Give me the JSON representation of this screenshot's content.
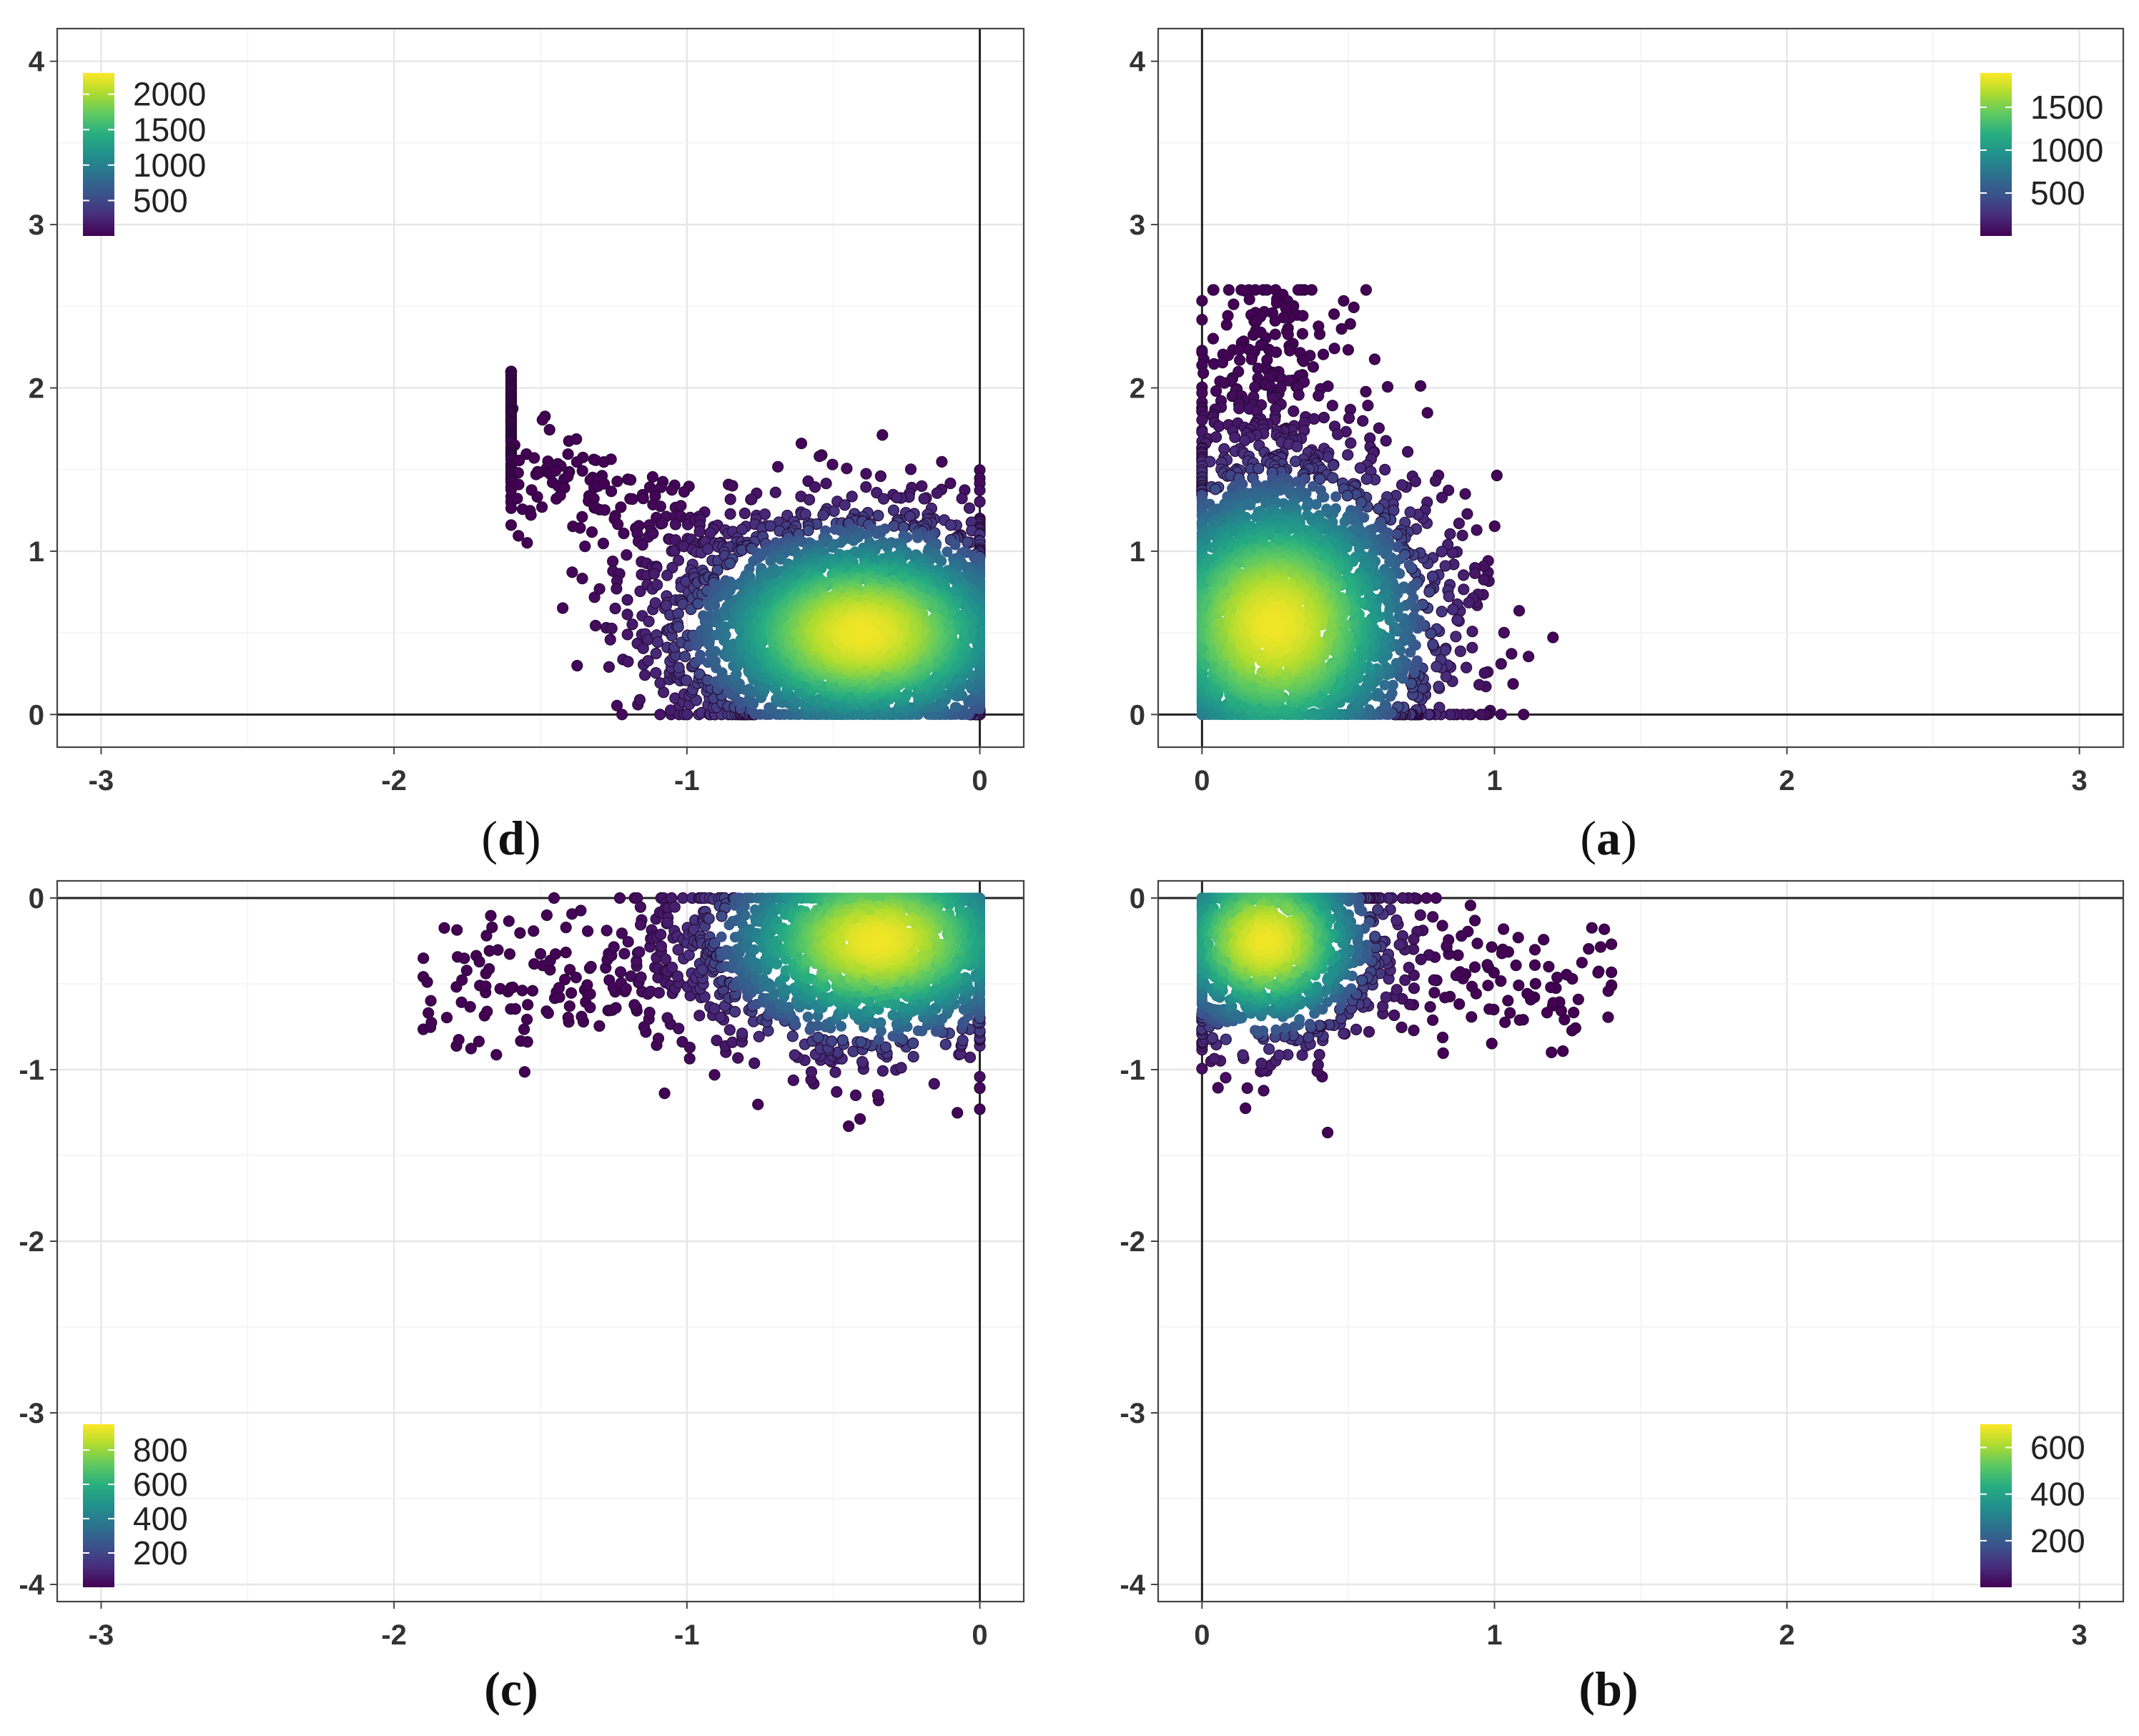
{
  "chart_data": [
    {
      "id": "d",
      "type": "scatter",
      "caption": {
        "open": "(",
        "letter": "d",
        "close": ")"
      },
      "xlim": [
        -3.15,
        0.15
      ],
      "ylim": [
        -0.2,
        4.2
      ],
      "x_ticks": [
        "-3",
        "-2",
        "-1",
        "0"
      ],
      "x_tick_values": [
        -3,
        -2,
        -1,
        0
      ],
      "y_ticks": [
        "0",
        "1",
        "2",
        "3",
        "4"
      ],
      "y_tick_values": [
        0,
        1,
        2,
        3,
        4
      ],
      "legend": {
        "position": "top-left",
        "labels": [
          "2000",
          "1500",
          "1000",
          "500"
        ],
        "values": [
          2000,
          1500,
          1000,
          500
        ],
        "range": [
          0,
          2300
        ]
      },
      "density": {
        "center": [
          -0.4,
          0.5
        ],
        "spread": [
          0.32,
          0.36
        ],
        "x_range": [
          -1.6,
          0.0
        ],
        "y_range": [
          0.0,
          2.1
        ],
        "count": 3600,
        "seed": 11,
        "tail_toward": [
          -2.3,
          2.2
        ]
      },
      "grid": true
    },
    {
      "id": "a",
      "type": "scatter",
      "caption": {
        "open": "(",
        "letter": "a",
        "close": ")"
      },
      "xlim": [
        -0.15,
        3.15
      ],
      "ylim": [
        -0.2,
        4.2
      ],
      "x_ticks": [
        "0",
        "1",
        "2",
        "3"
      ],
      "x_tick_values": [
        0,
        1,
        2,
        3
      ],
      "y_ticks": [
        "0",
        "1",
        "2",
        "3",
        "4"
      ],
      "y_tick_values": [
        0,
        1,
        2,
        3,
        4
      ],
      "legend": {
        "position": "top-right",
        "labels": [
          "1500",
          "1000",
          "500"
        ],
        "values": [
          1500,
          1000,
          500
        ],
        "range": [
          0,
          1900
        ]
      },
      "density": {
        "center": [
          0.25,
          0.55
        ],
        "spread": [
          0.28,
          0.5
        ],
        "x_range": [
          0.0,
          1.2
        ],
        "y_range": [
          0.0,
          2.6
        ],
        "count": 3400,
        "seed": 23,
        "tail_toward": [
          0.2,
          2.6
        ]
      },
      "grid": true
    },
    {
      "id": "c",
      "type": "scatter",
      "caption": {
        "open": "(",
        "letter": "c",
        "close": ")"
      },
      "xlim": [
        -3.15,
        0.15
      ],
      "ylim": [
        -4.1,
        0.1
      ],
      "x_ticks": [
        "-3",
        "-2",
        "-1",
        "0"
      ],
      "x_tick_values": [
        -3,
        -2,
        -1,
        0
      ],
      "y_ticks": [
        "0",
        "-1",
        "-2",
        "-3",
        "-4"
      ],
      "y_tick_values": [
        0,
        -1,
        -2,
        -3,
        -4
      ],
      "legend": {
        "position": "bottom-left",
        "labels": [
          "800",
          "600",
          "400",
          "200"
        ],
        "values": [
          800,
          600,
          400,
          200
        ],
        "range": [
          0,
          950
        ]
      },
      "density": {
        "center": [
          -0.35,
          -0.25
        ],
        "spread": [
          0.3,
          0.32
        ],
        "x_range": [
          -1.9,
          0.0
        ],
        "y_range": [
          -1.9,
          0.0
        ],
        "count": 2300,
        "seed": 37,
        "tail_toward": [
          -1.8,
          -0.6
        ]
      },
      "grid": true
    },
    {
      "id": "b",
      "type": "scatter",
      "caption": {
        "open": "(",
        "letter": "b",
        "close": ")"
      },
      "xlim": [
        -0.15,
        3.15
      ],
      "ylim": [
        -4.1,
        0.1
      ],
      "x_ticks": [
        "0",
        "1",
        "2",
        "3"
      ],
      "x_tick_values": [
        0,
        1,
        2,
        3
      ],
      "y_ticks": [
        "0",
        "-1",
        "-2",
        "-3",
        "-4"
      ],
      "y_tick_values": [
        0,
        -1,
        -2,
        -3,
        -4
      ],
      "legend": {
        "position": "bottom-right",
        "labels": [
          "600",
          "400",
          "200"
        ],
        "values": [
          600,
          400,
          200
        ],
        "range": [
          0,
          700
        ]
      },
      "density": {
        "center": [
          0.22,
          -0.25
        ],
        "spread": [
          0.2,
          0.3
        ],
        "x_range": [
          0.0,
          1.4
        ],
        "y_range": [
          -1.9,
          0.0
        ],
        "count": 1500,
        "seed": 53,
        "tail_toward": [
          1.35,
          -0.55
        ]
      },
      "grid": true
    }
  ],
  "colors": {
    "viridis": [
      "#440154",
      "#472d7b",
      "#3b528b",
      "#2c728e",
      "#21918c",
      "#28ae80",
      "#5ec962",
      "#addc30",
      "#fde725"
    ],
    "point_stroke": "#2a0a3a"
  }
}
